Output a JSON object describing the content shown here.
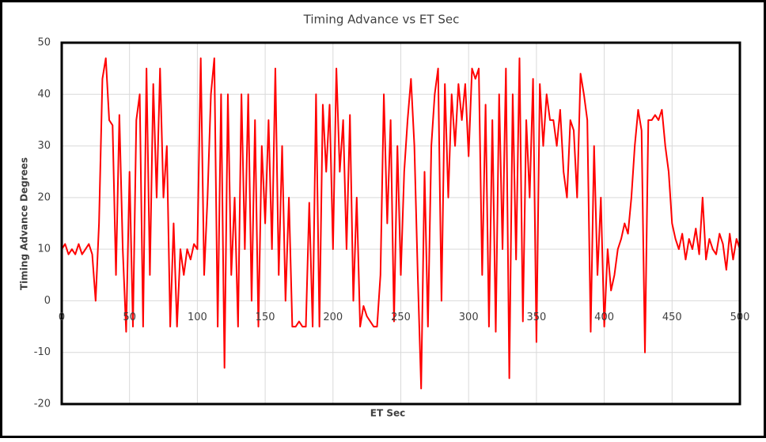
{
  "chart_data": {
    "type": "line",
    "title": "Timing Advance vs ET Sec",
    "x_label": "ET Sec",
    "y_label": "Timing Advance Degrees",
    "color": "#ff0000",
    "grid": true,
    "xlim": [
      0,
      500
    ],
    "xticks": [
      0,
      50,
      100,
      150,
      200,
      250,
      300,
      350,
      400,
      450,
      500
    ],
    "ylim": [
      -20,
      50
    ],
    "yticks": [
      -20,
      -10,
      0,
      10,
      20,
      30,
      40,
      50
    ],
    "x": [
      0,
      2.5,
      5,
      7.5,
      10,
      12.5,
      15,
      17.5,
      20,
      22.5,
      25,
      27.5,
      30,
      32.5,
      35,
      37.5,
      40,
      42.5,
      45,
      47.5,
      50,
      52.5,
      55,
      57.5,
      60,
      62.5,
      65,
      67.5,
      70,
      72.5,
      75,
      77.5,
      80,
      82.5,
      85,
      87.5,
      90,
      92.5,
      95,
      97.5,
      100,
      102.5,
      105,
      107.5,
      110,
      112.5,
      115,
      117.5,
      120,
      122.5,
      125,
      127.5,
      130,
      132.5,
      135,
      137.5,
      140,
      142.5,
      145,
      147.5,
      150,
      152.5,
      155,
      157.5,
      160,
      162.5,
      165,
      167.5,
      170,
      172.5,
      175,
      177.5,
      180,
      182.5,
      185,
      187.5,
      190,
      192.5,
      195,
      197.5,
      200,
      202.5,
      205,
      207.5,
      210,
      212.5,
      215,
      217.5,
      220,
      222.5,
      225,
      227.5,
      230,
      232.5,
      235,
      237.5,
      240,
      242.5,
      245,
      247.5,
      250,
      252.5,
      255,
      257.5,
      260,
      262.5,
      265,
      267.5,
      270,
      272.5,
      275,
      277.5,
      280,
      282.5,
      285,
      287.5,
      290,
      292.5,
      295,
      297.5,
      300,
      302.5,
      305,
      307.5,
      310,
      312.5,
      315,
      317.5,
      320,
      322.5,
      325,
      327.5,
      330,
      332.5,
      335,
      337.5,
      340,
      342.5,
      345,
      347.5,
      350,
      352.5,
      355,
      357.5,
      360,
      362.5,
      365,
      367.5,
      370,
      372.5,
      375,
      377.5,
      380,
      382.5,
      385,
      387.5,
      390,
      392.5,
      395,
      397.5,
      400,
      402.5,
      405,
      407.5,
      410,
      412.5,
      415,
      417.5,
      420,
      422.5,
      425,
      427.5,
      430,
      432.5,
      435,
      437.5,
      440,
      442.5,
      445,
      447.5,
      450,
      452.5,
      455,
      457.5,
      460,
      462.5,
      465,
      467.5,
      470,
      472.5,
      475,
      477.5,
      480,
      482.5,
      485,
      487.5,
      490,
      492.5,
      495,
      497.5,
      500
    ],
    "values": [
      10,
      11,
      9,
      10,
      9,
      11,
      9,
      10,
      11,
      9,
      0,
      15,
      43,
      47,
      35,
      34,
      5,
      36,
      10,
      -6,
      25,
      -5,
      35,
      40,
      -5,
      45,
      5,
      42,
      20,
      45,
      20,
      30,
      -5,
      15,
      -5,
      10,
      5,
      10,
      8,
      11,
      10,
      47,
      5,
      20,
      40,
      47,
      -5,
      40,
      -13,
      40,
      5,
      20,
      -5,
      40,
      10,
      40,
      0,
      35,
      -5,
      30,
      15,
      35,
      10,
      45,
      5,
      30,
      0,
      20,
      -5,
      -5,
      -4,
      -5,
      -5,
      19,
      -5,
      40,
      -5,
      38,
      25,
      38,
      10,
      45,
      25,
      35,
      10,
      36,
      0,
      20,
      -5,
      -1,
      -3,
      -4,
      -5,
      -5,
      5,
      40,
      15,
      35,
      -4,
      30,
      5,
      25,
      35,
      43,
      30,
      5,
      -17,
      25,
      -5,
      30,
      40,
      45,
      0,
      42,
      20,
      40,
      30,
      42,
      35,
      42,
      28,
      45,
      43,
      45,
      5,
      38,
      -5,
      35,
      -6,
      40,
      10,
      45,
      -15,
      40,
      8,
      47,
      -4,
      35,
      20,
      43,
      -8,
      42,
      30,
      40,
      35,
      35,
      30,
      37,
      25,
      20,
      35,
      33,
      20,
      44,
      40,
      35,
      -6,
      30,
      5,
      20,
      -5,
      10,
      2,
      5,
      10,
      12,
      15,
      13,
      20,
      30,
      37,
      33,
      -10,
      35,
      35,
      36,
      35,
      37,
      30,
      25,
      15,
      12,
      10,
      13,
      8,
      12,
      10,
      14,
      9,
      20,
      8,
      12,
      10,
      9,
      13,
      11,
      6,
      13,
      8,
      12,
      10
    ]
  }
}
